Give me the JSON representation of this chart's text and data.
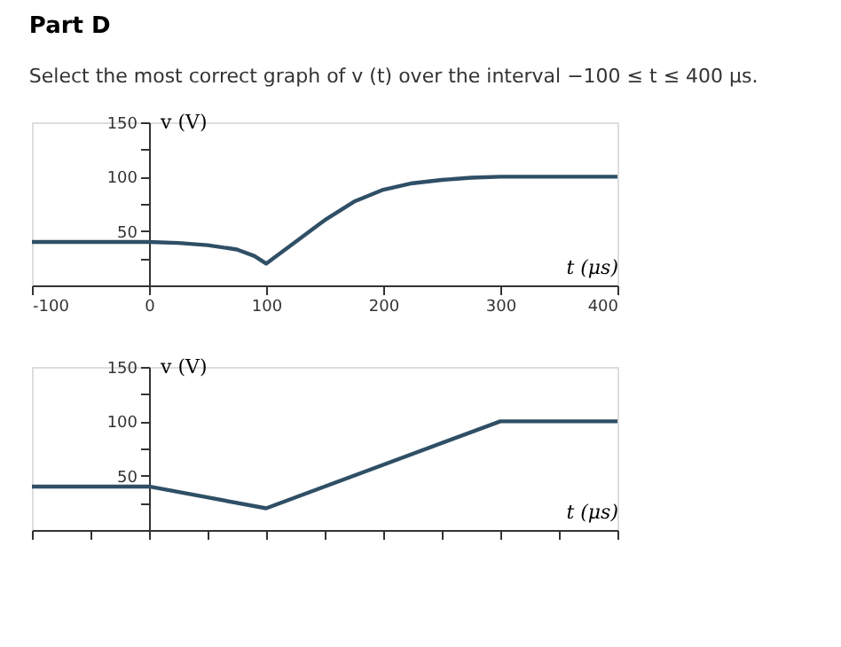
{
  "chart_data": [
    {
      "type": "line",
      "title": "Part D",
      "subtitle": "Select the most correct graph of v (t) over the interval −100 ≤ t ≤ 400 μs.",
      "xlabel": "t (μs)",
      "ylabel": "v (V)",
      "xlim": [
        -100,
        400
      ],
      "ylim": [
        0,
        150
      ],
      "xticks": [
        -100,
        0,
        100,
        200,
        300,
        400
      ],
      "yticks": [
        {
          "value": 25,
          "label": null
        },
        50,
        {
          "value": 75,
          "label": null
        },
        100,
        {
          "value": 125,
          "label": null
        },
        150
      ],
      "grid": false,
      "series": [
        {
          "color": "#2f4f66",
          "x": [
            -100,
            0,
            25,
            50,
            75,
            90,
            100,
            125,
            150,
            175,
            200,
            225,
            250,
            275,
            300,
            400
          ],
          "values": [
            40,
            40,
            39,
            37,
            33,
            27,
            20,
            40,
            60,
            77,
            88,
            94,
            97,
            99,
            100,
            100
          ]
        }
      ]
    },
    {
      "type": "line",
      "xlabel": "t (μs)",
      "ylabel": "v (V)",
      "xlim": [
        -100,
        400
      ],
      "ylim": [
        0,
        150
      ],
      "yticks": [
        {
          "value": 25,
          "label": null
        },
        50,
        {
          "value": 75,
          "label": null
        },
        100,
        {
          "value": 125,
          "label": null
        },
        150
      ],
      "grid": false,
      "tick_labels": "y",
      "series": [
        {
          "color": "#2f4f66",
          "x": [
            -100,
            0,
            100,
            300,
            400
          ],
          "values": [
            40,
            40,
            20,
            100,
            100
          ]
        }
      ]
    }
  ]
}
